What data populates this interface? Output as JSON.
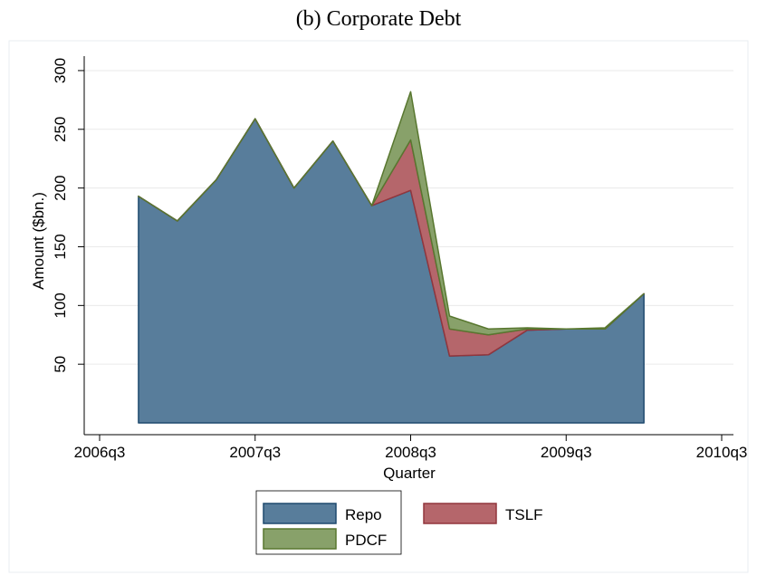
{
  "chart_data": {
    "type": "stacked-area",
    "title": "(b) Corporate Debt",
    "x_label": "Quarter",
    "y_label": "Amount ($bn.)",
    "x": [
      "2006q4",
      "2007q1",
      "2007q2",
      "2007q3",
      "2007q4",
      "2008q1",
      "2008q2",
      "2008q3",
      "2008q4",
      "2009q1",
      "2009q2",
      "2009q3",
      "2009q4",
      "2010q1"
    ],
    "series": [
      {
        "name": "Repo",
        "color": "#587d9b",
        "edge": "#1f4a6e",
        "values": [
          193,
          172,
          207,
          259,
          200,
          240,
          185,
          198,
          57,
          58,
          79,
          80,
          80,
          110
        ]
      },
      {
        "name": "TSLF",
        "color": "#b5666b",
        "edge": "#92363d",
        "values": [
          0,
          0,
          0,
          0,
          0,
          0,
          0,
          43,
          23,
          17,
          1,
          0,
          0,
          0
        ]
      },
      {
        "name": "PDCF",
        "color": "#88a16a",
        "edge": "#58772f",
        "values": [
          0,
          0,
          0,
          0,
          0,
          0,
          0,
          41,
          11,
          5,
          1,
          0,
          1,
          0
        ]
      }
    ],
    "xlim": [
      "2006q3",
      "2010q3"
    ],
    "xticks": [
      "2006q3",
      "2007q3",
      "2008q3",
      "2009q3",
      "2010q3"
    ],
    "ylim": [
      -10,
      320
    ],
    "yticks": [
      50,
      100,
      150,
      200,
      250,
      300
    ],
    "grid": true,
    "legend": "bottom"
  }
}
